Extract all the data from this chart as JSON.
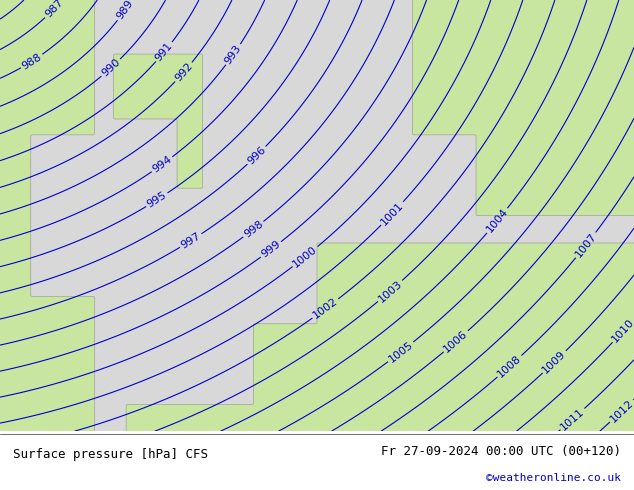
{
  "title_left": "Surface pressure [hPa] CFS",
  "title_right": "Fr 27-09-2024 00:00 UTC (00+120)",
  "credit": "©weatheronline.co.uk",
  "bg_color": "#d8d8d8",
  "land_color": "#c8e6a0",
  "sea_color": "#d8d8d8",
  "contour_color": "#0000cc",
  "contour_label_color": "#0000cc",
  "bottom_bar_color": "#ffffff",
  "pressure_min": 984,
  "pressure_max": 1020,
  "pressure_step": 1,
  "label_fontsize": 8,
  "title_fontsize": 9,
  "credit_fontsize": 8
}
